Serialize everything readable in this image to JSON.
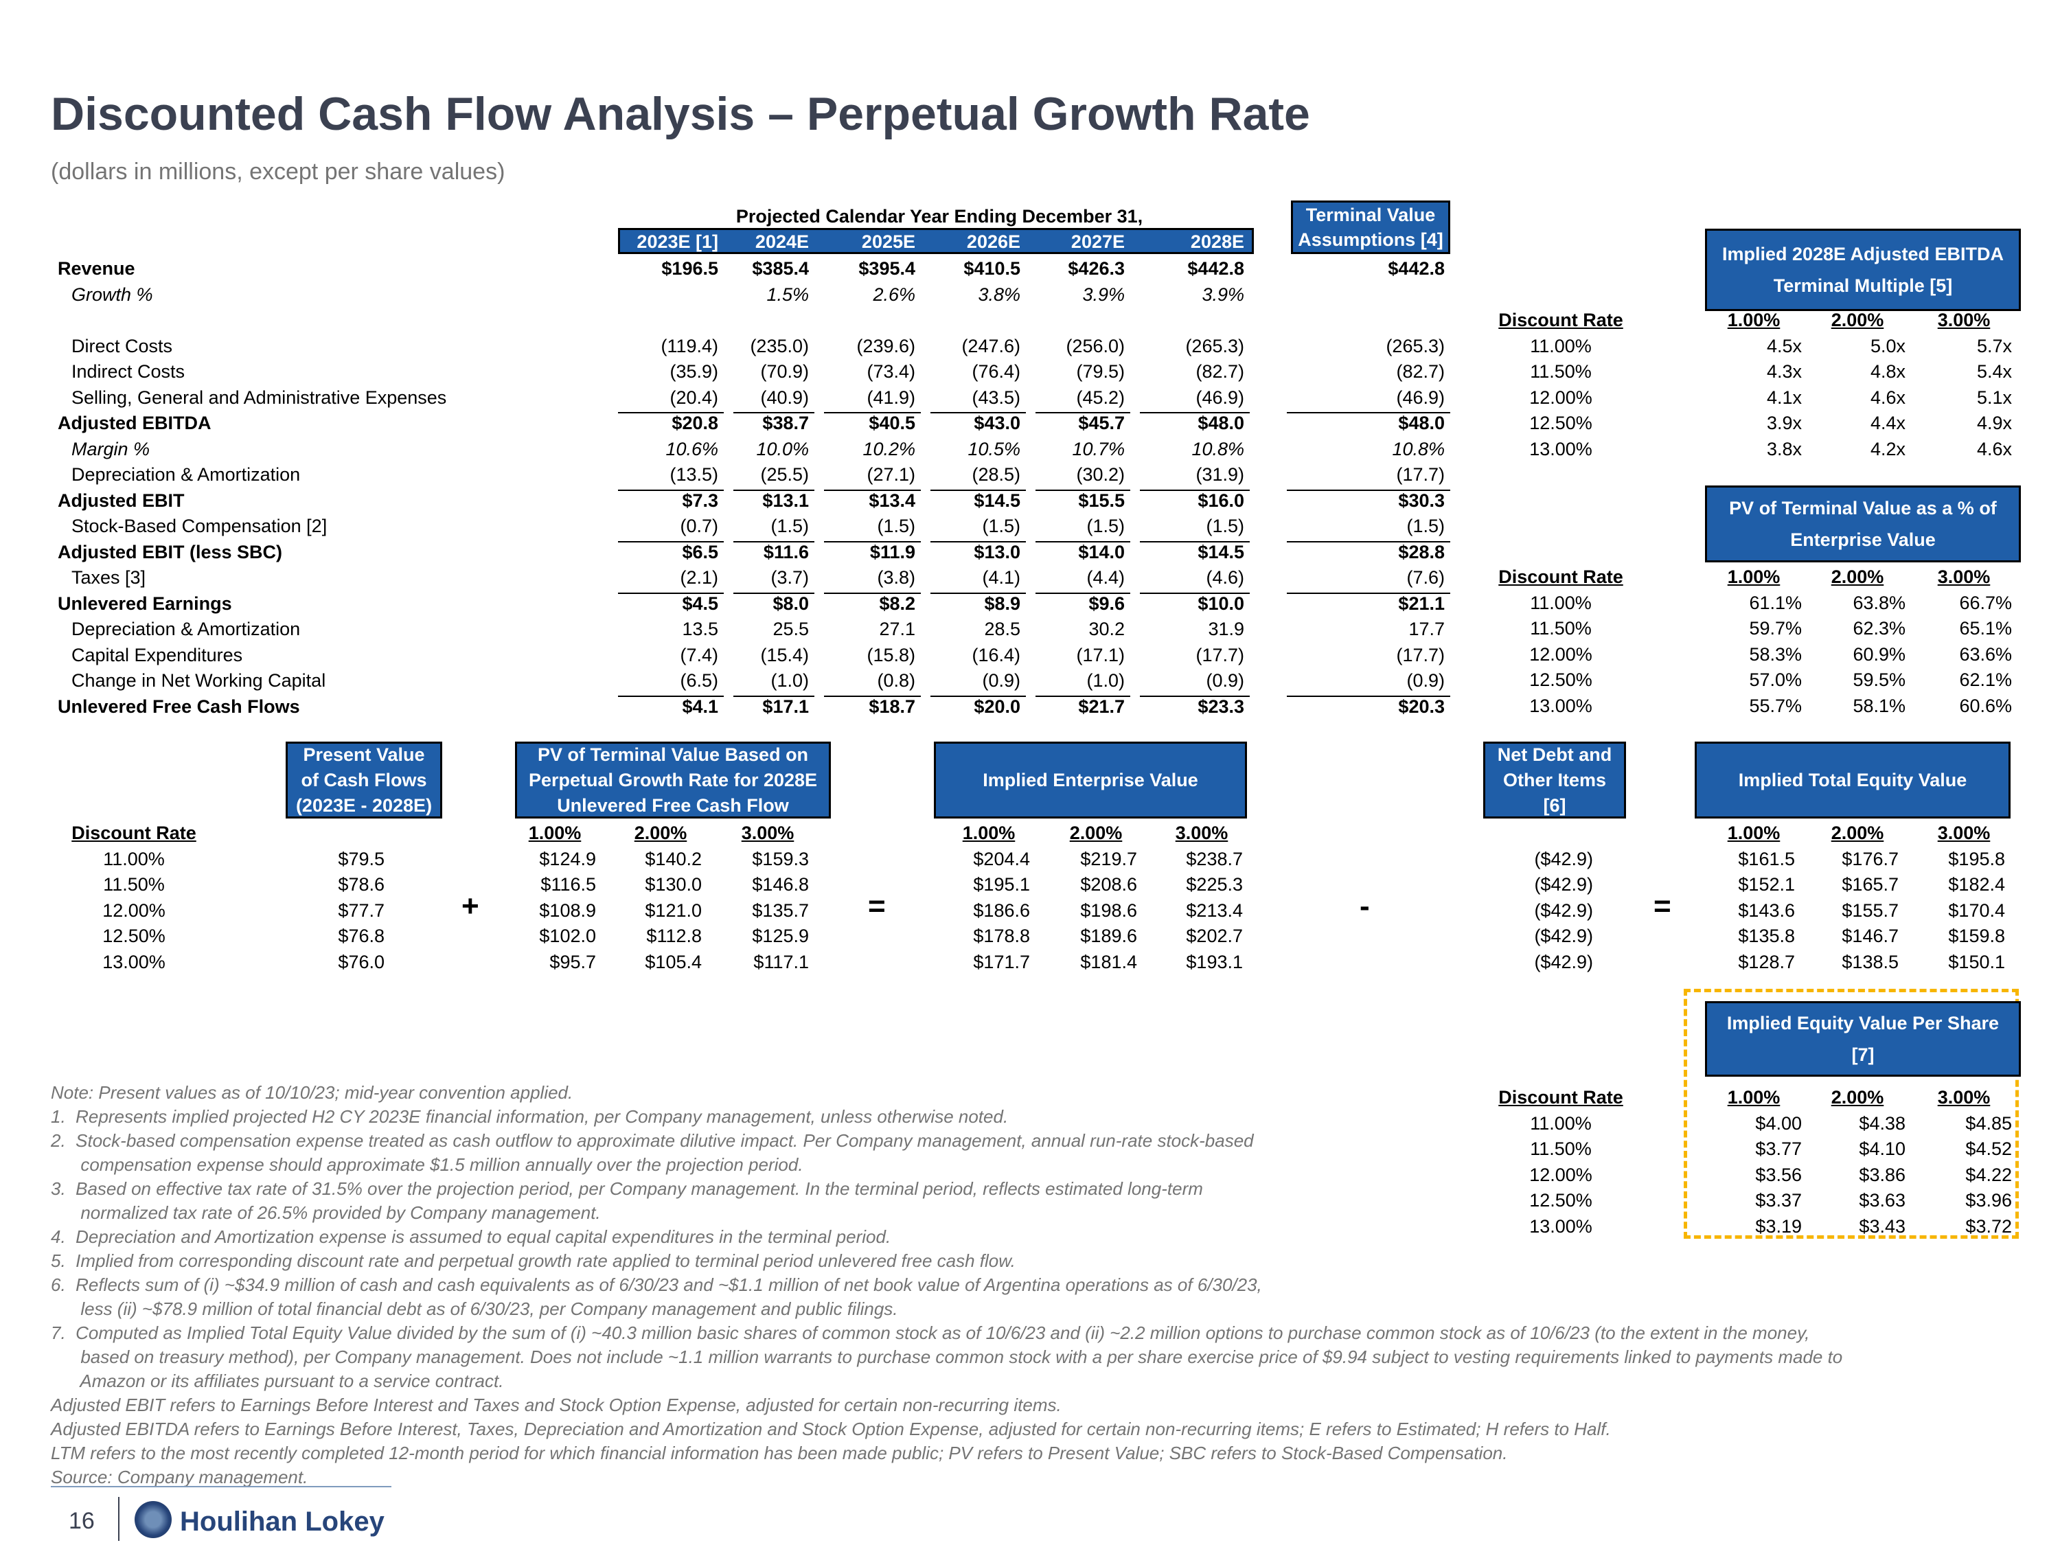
{
  "title": "Discounted Cash Flow Analysis – Perpetual Growth Rate",
  "subtitle": "(dollars in millions, except per share values)",
  "proj_header": "Projected Calendar Year Ending December 31,",
  "years": [
    "2023E [1]",
    "2024E",
    "2025E",
    "2026E",
    "2027E",
    "2028E"
  ],
  "tv_header": "Terminal Value Assumptions [4]",
  "rows": [
    {
      "label": "Revenue",
      "style": "bold",
      "vals": [
        "$196.5",
        "$385.4",
        "$395.4",
        "$410.5",
        "$426.3",
        "$442.8"
      ],
      "tv": "$442.8"
    },
    {
      "label": "Growth %",
      "style": "italic",
      "vals": [
        "",
        "1.5%",
        "2.6%",
        "3.8%",
        "3.9%",
        "3.9%"
      ],
      "tv": ""
    },
    {
      "label": "",
      "style": "blank",
      "vals": [
        "",
        "",
        "",
        "",
        "",
        ""
      ],
      "tv": ""
    },
    {
      "label": "Direct Costs",
      "style": "indent",
      "vals": [
        "(119.4)",
        "(235.0)",
        "(239.6)",
        "(247.6)",
        "(256.0)",
        "(265.3)"
      ],
      "tv": "(265.3)"
    },
    {
      "label": "Indirect Costs",
      "style": "indent",
      "vals": [
        "(35.9)",
        "(70.9)",
        "(73.4)",
        "(76.4)",
        "(79.5)",
        "(82.7)"
      ],
      "tv": "(82.7)"
    },
    {
      "label": "Selling, General and Administrative Expenses",
      "style": "indent",
      "vals": [
        "(20.4)",
        "(40.9)",
        "(41.9)",
        "(43.5)",
        "(45.2)",
        "(46.9)"
      ],
      "tv": "(46.9)"
    },
    {
      "label": "Adjusted EBITDA",
      "style": "bold",
      "vals": [
        "$20.8",
        "$38.7",
        "$40.5",
        "$43.0",
        "$45.7",
        "$48.0"
      ],
      "tv": "$48.0"
    },
    {
      "label": "Margin %",
      "style": "italic",
      "vals": [
        "10.6%",
        "10.0%",
        "10.2%",
        "10.5%",
        "10.7%",
        "10.8%"
      ],
      "tv": "10.8%"
    },
    {
      "label": "Depreciation & Amortization",
      "style": "indent",
      "vals": [
        "(13.5)",
        "(25.5)",
        "(27.1)",
        "(28.5)",
        "(30.2)",
        "(31.9)"
      ],
      "tv": "(17.7)"
    },
    {
      "label": "Adjusted EBIT",
      "style": "bold",
      "vals": [
        "$7.3",
        "$13.1",
        "$13.4",
        "$14.5",
        "$15.5",
        "$16.0"
      ],
      "tv": "$30.3"
    },
    {
      "label": "Stock-Based Compensation [2]",
      "style": "indent",
      "vals": [
        "(0.7)",
        "(1.5)",
        "(1.5)",
        "(1.5)",
        "(1.5)",
        "(1.5)"
      ],
      "tv": "(1.5)"
    },
    {
      "label": "Adjusted EBIT (less SBC)",
      "style": "bold",
      "vals": [
        "$6.5",
        "$11.6",
        "$11.9",
        "$13.0",
        "$14.0",
        "$14.5"
      ],
      "tv": "$28.8"
    },
    {
      "label": "Taxes [3]",
      "style": "indent",
      "vals": [
        "(2.1)",
        "(3.7)",
        "(3.8)",
        "(4.1)",
        "(4.4)",
        "(4.6)"
      ],
      "tv": "(7.6)"
    },
    {
      "label": "Unlevered Earnings",
      "style": "bold",
      "vals": [
        "$4.5",
        "$8.0",
        "$8.2",
        "$8.9",
        "$9.6",
        "$10.0"
      ],
      "tv": "$21.1"
    },
    {
      "label": "Depreciation & Amortization",
      "style": "indent",
      "vals": [
        "13.5",
        "25.5",
        "27.1",
        "28.5",
        "30.2",
        "31.9"
      ],
      "tv": "17.7"
    },
    {
      "label": "Capital Expenditures",
      "style": "indent",
      "vals": [
        "(7.4)",
        "(15.4)",
        "(15.8)",
        "(16.4)",
        "(17.1)",
        "(17.7)"
      ],
      "tv": "(17.7)"
    },
    {
      "label": "Change in Net Working Capital",
      "style": "indent",
      "vals": [
        "(6.5)",
        "(1.0)",
        "(0.8)",
        "(0.9)",
        "(1.0)",
        "(0.9)"
      ],
      "tv": "(0.9)"
    },
    {
      "label": "Unlevered Free Cash Flows",
      "style": "bold",
      "vals": [
        "$4.1",
        "$17.1",
        "$18.7",
        "$20.0",
        "$21.7",
        "$23.3"
      ],
      "tv": "$20.3"
    }
  ],
  "sens_ebitda": {
    "title": "Implied 2028E Adjusted EBITDA Terminal Multiple [5]",
    "dr_label": "Discount Rate",
    "cols": [
      "1.00%",
      "2.00%",
      "3.00%"
    ],
    "rates": [
      "11.00%",
      "11.50%",
      "12.00%",
      "12.50%",
      "13.00%"
    ],
    "cells": [
      [
        "4.5x",
        "5.0x",
        "5.7x"
      ],
      [
        "4.3x",
        "4.8x",
        "5.4x"
      ],
      [
        "4.1x",
        "4.6x",
        "5.1x"
      ],
      [
        "3.9x",
        "4.4x",
        "4.9x"
      ],
      [
        "3.8x",
        "4.2x",
        "4.6x"
      ]
    ]
  },
  "sens_pv": {
    "title": "PV of Terminal Value as a % of Enterprise Value",
    "dr_label": "Discount Rate",
    "cols": [
      "1.00%",
      "2.00%",
      "3.00%"
    ],
    "rates": [
      "11.00%",
      "11.50%",
      "12.00%",
      "12.50%",
      "13.00%"
    ],
    "cells": [
      [
        "61.1%",
        "63.8%",
        "66.7%"
      ],
      [
        "59.7%",
        "62.3%",
        "65.1%"
      ],
      [
        "58.3%",
        "60.9%",
        "63.6%"
      ],
      [
        "57.0%",
        "59.5%",
        "62.1%"
      ],
      [
        "55.7%",
        "58.1%",
        "60.6%"
      ]
    ]
  },
  "bridge": {
    "dr_label": "Discount Rate",
    "rates": [
      "11.00%",
      "11.50%",
      "12.00%",
      "12.50%",
      "13.00%"
    ],
    "pv_cf_title": "Present Value of Cash Flows (2023E - 2028E)",
    "pv_cf": [
      "$79.5",
      "$78.6",
      "$77.7",
      "$76.8",
      "$76.0"
    ],
    "pv_tv_title": "PV of Terminal Value Based on Perpetual Growth Rate for 2028E Unlevered Free Cash Flow",
    "cols": [
      "1.00%",
      "2.00%",
      "3.00%"
    ],
    "pv_tv": [
      [
        "$124.9",
        "$140.2",
        "$159.3"
      ],
      [
        "$116.5",
        "$130.0",
        "$146.8"
      ],
      [
        "$108.9",
        "$121.0",
        "$135.7"
      ],
      [
        "$102.0",
        "$112.8",
        "$125.9"
      ],
      [
        "$95.7",
        "$105.4",
        "$117.1"
      ]
    ],
    "ev_title": "Implied Enterprise Value",
    "ev": [
      [
        "$204.4",
        "$219.7",
        "$238.7"
      ],
      [
        "$195.1",
        "$208.6",
        "$225.3"
      ],
      [
        "$186.6",
        "$198.6",
        "$213.4"
      ],
      [
        "$178.8",
        "$189.6",
        "$202.7"
      ],
      [
        "$171.7",
        "$181.4",
        "$193.1"
      ]
    ],
    "nd_title": "Net Debt and Other Items [6]",
    "nd": [
      "($42.9)",
      "($42.9)",
      "($42.9)",
      "($42.9)",
      "($42.9)"
    ],
    "eq_title": "Implied Total Equity Value",
    "eq": [
      [
        "$161.5",
        "$176.7",
        "$195.8"
      ],
      [
        "$152.1",
        "$165.7",
        "$182.4"
      ],
      [
        "$143.6",
        "$155.7",
        "$170.4"
      ],
      [
        "$135.8",
        "$146.7",
        "$159.8"
      ],
      [
        "$128.7",
        "$138.5",
        "$150.1"
      ]
    ],
    "op_plus": "+",
    "op_eq": "=",
    "op_minus": "-"
  },
  "per_share": {
    "title": "Implied Equity Value Per Share [7]",
    "dr_label": "Discount Rate",
    "cols": [
      "1.00%",
      "2.00%",
      "3.00%"
    ],
    "rates": [
      "11.00%",
      "11.50%",
      "12.00%",
      "12.50%",
      "13.00%"
    ],
    "cells": [
      [
        "$4.00",
        "$4.38",
        "$4.85"
      ],
      [
        "$3.77",
        "$4.10",
        "$4.52"
      ],
      [
        "$3.56",
        "$3.86",
        "$4.22"
      ],
      [
        "$3.37",
        "$3.63",
        "$3.96"
      ],
      [
        "$3.19",
        "$3.43",
        "$3.72"
      ]
    ]
  },
  "notes": [
    "Note: Present values as of 10/10/23; mid-year convention applied.",
    "1.  Represents implied projected H2 CY 2023E financial information, per Company management, unless otherwise noted.",
    "2.  Stock-based compensation expense treated as cash outflow to approximate dilutive impact. Per Company management, annual run-rate stock-based",
    "      compensation expense should approximate $1.5 million annually over the projection period.",
    "3.  Based on effective tax rate of 31.5% over the projection period, per Company management. In the terminal period, reflects estimated long-term",
    "      normalized tax rate of 26.5% provided by Company management.",
    "4.  Depreciation and Amortization expense is assumed to equal capital expenditures in the terminal period.",
    "5.  Implied from corresponding discount rate and perpetual growth rate applied to terminal period unlevered free cash flow.",
    "6.  Reflects sum of (i) ~$34.9 million of cash and cash equivalents as of 6/30/23 and ~$1.1 million of net book value of Argentina operations as of 6/30/23,",
    "      less (ii) ~$78.9 million of total financial debt as of 6/30/23, per Company management and public filings.",
    "7.  Computed as Implied Total Equity Value divided by the sum of (i) ~40.3 million basic shares of common stock as of 10/6/23 and (ii) ~2.2 million options to purchase common stock as of 10/6/23 (to the extent in the money,",
    "      based on treasury method), per Company management. Does not include ~1.1 million warrants to purchase common stock with a per share exercise price of $9.94 subject to vesting requirements linked to payments made to",
    "      Amazon or its affiliates pursuant to a service contract.",
    "Adjusted EBIT refers to Earnings Before Interest and Taxes and Stock Option Expense, adjusted for certain non-recurring items.",
    "Adjusted EBITDA refers to Earnings Before Interest, Taxes, Depreciation and Amortization and Stock Option Expense, adjusted for certain non-recurring items; E refers to Estimated; H refers to Half.",
    "LTM refers to the most recently completed 12-month period for which financial information has been made public; PV refers to Present Value; SBC refers to Stock-Based Compensation.",
    "Source: Company management."
  ],
  "footer": {
    "page": "16",
    "logo": "Houlihan Lokey"
  }
}
